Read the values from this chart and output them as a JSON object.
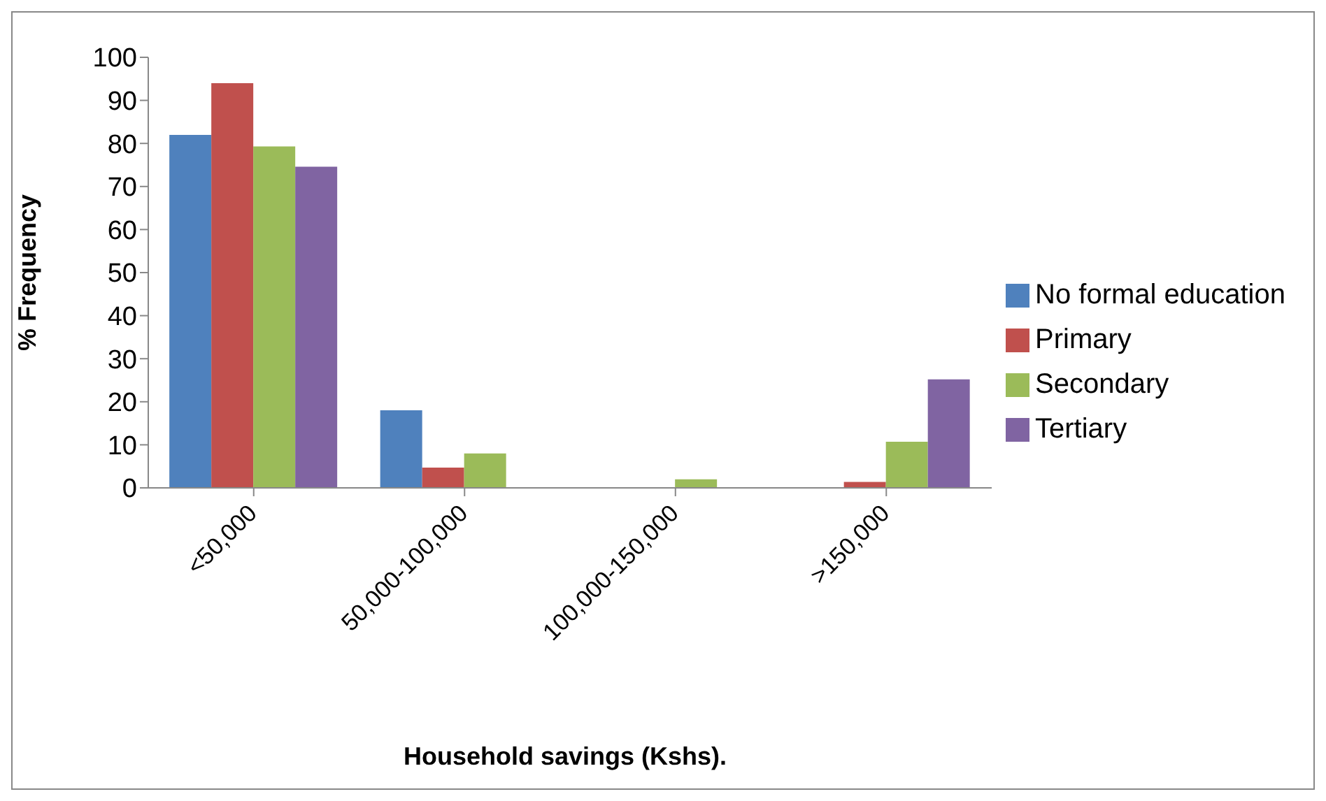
{
  "chart_data": {
    "type": "bar",
    "xlabel": "Household savings (Kshs).",
    "ylabel": "% Frequency",
    "categories": [
      "<50,000",
      "50,000-100,000",
      "100,000-150,000",
      ">150,000"
    ],
    "series": [
      {
        "name": "No formal education",
        "color": "#4f81bd",
        "values": [
          82,
          18,
          0,
          0
        ]
      },
      {
        "name": "Primary",
        "color": "#c0504d",
        "values": [
          94,
          4.7,
          0,
          1.4
        ]
      },
      {
        "name": "Secondary",
        "color": "#9bbb59",
        "values": [
          79.3,
          8,
          2,
          10.7
        ]
      },
      {
        "name": "Tertiary",
        "color": "#8064a2",
        "values": [
          74.6,
          0,
          0,
          25.2
        ]
      }
    ],
    "ylim": [
      0,
      100
    ],
    "yticks": [
      0,
      10,
      20,
      30,
      40,
      50,
      60,
      70,
      80,
      90,
      100
    ],
    "grid": false,
    "legend": "right"
  }
}
